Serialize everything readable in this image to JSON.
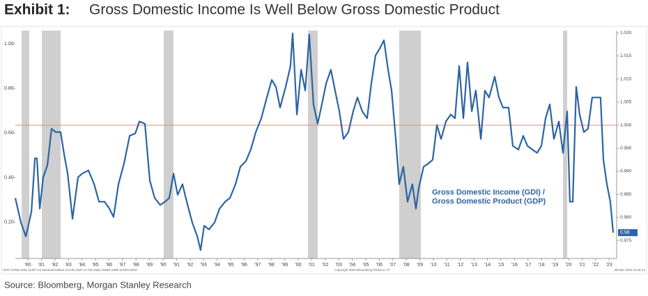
{
  "chart_data": {
    "type": "line",
    "title_prefix": "Exhibit 1:",
    "title": "Gross Domestic Income Is Well Below Gross Domestic Product",
    "source": "Source: Bloomberg, Morgan Stanley Research",
    "footnotes": [
      "GDP CUR$ Index (GDP US Nominal Dollars SAAR) GDP vs GDI Daily 31DEC1980-31DEC2023",
      "Copyright 2024 Bloomberg Finance L.P.",
      "08-Mar-2024 10:26:12"
    ],
    "label_lines": [
      "Gross Domestic Income (GDI) /",
      "Gross Domestic Product (GDP)"
    ],
    "last_value_label": "0.98",
    "reference_line": {
      "value": 1.0,
      "color": "#e8877f"
    },
    "shaded_ranges": [
      [
        1979.54,
        1980.1
      ],
      [
        1981.03,
        1982.42
      ],
      [
        1990.05,
        1990.77
      ],
      [
        2000.72,
        2001.44
      ],
      [
        2007.47,
        2009.07
      ],
      [
        2019.59,
        2019.9
      ]
    ],
    "shade_color": "#cfcfcf",
    "xlim": [
      1979.07,
      2023.56
    ],
    "xticks": [
      {
        "value": 1980,
        "label": "'80"
      },
      {
        "value": 1981,
        "label": "'81"
      },
      {
        "value": 1982,
        "label": "'82"
      },
      {
        "value": 1983,
        "label": "'83"
      },
      {
        "value": 1984,
        "label": "'84"
      },
      {
        "value": 1985,
        "label": "'85"
      },
      {
        "value": 1986,
        "label": "'86"
      },
      {
        "value": 1987,
        "label": "'87"
      },
      {
        "value": 1988,
        "label": "'88"
      },
      {
        "value": 1989,
        "label": "'89"
      },
      {
        "value": 1990,
        "label": "'90"
      },
      {
        "value": 1991,
        "label": "'91"
      },
      {
        "value": 1992,
        "label": "'92"
      },
      {
        "value": 1993,
        "label": "'93"
      },
      {
        "value": 1994,
        "label": "'94"
      },
      {
        "value": 1995,
        "label": "'95"
      },
      {
        "value": 1996,
        "label": "'96"
      },
      {
        "value": 1997,
        "label": "'97"
      },
      {
        "value": 1998,
        "label": "'98"
      },
      {
        "value": 1999,
        "label": "'99"
      },
      {
        "value": 2000,
        "label": "'00"
      },
      {
        "value": 2001,
        "label": "'01"
      },
      {
        "value": 2002,
        "label": "'02"
      },
      {
        "value": 2003,
        "label": "'03"
      },
      {
        "value": 2004,
        "label": "'04"
      },
      {
        "value": 2005,
        "label": "'05"
      },
      {
        "value": 2006,
        "label": "'06"
      },
      {
        "value": 2007,
        "label": "'07"
      },
      {
        "value": 2008,
        "label": "'08"
      },
      {
        "value": 2009,
        "label": "'09"
      },
      {
        "value": 2010,
        "label": "'10"
      },
      {
        "value": 2011,
        "label": "'11"
      },
      {
        "value": 2012,
        "label": "'12"
      },
      {
        "value": 2013,
        "label": "'13"
      },
      {
        "value": 2014,
        "label": "'14"
      },
      {
        "value": 2015,
        "label": "'15"
      },
      {
        "value": 2016,
        "label": "'16"
      },
      {
        "value": 2017,
        "label": "'17"
      },
      {
        "value": 2018,
        "label": "'18"
      },
      {
        "value": 2019,
        "label": "'19"
      },
      {
        "value": 2020,
        "label": "'20"
      },
      {
        "value": 2021,
        "label": "'21"
      },
      {
        "value": 2022,
        "label": "'22"
      },
      {
        "value": 2023,
        "label": "'23"
      }
    ],
    "ylim": [
      0.036,
      1.06
    ],
    "yticks": [
      {
        "value": 0.2,
        "label": "0.20"
      },
      {
        "value": 0.4,
        "label": "0.40"
      },
      {
        "value": 0.6,
        "label": "0.60"
      },
      {
        "value": 0.8,
        "label": "0.80"
      },
      {
        "value": 1.0,
        "label": "1.00"
      }
    ],
    "y2lim": [
      0.9711,
      1.0205
    ],
    "y2ticks": [
      0.975,
      {
        "value": 0.98,
        "label": "0.980"
      },
      0.985,
      {
        "value": 0.99,
        "label": "0.990"
      },
      0.995,
      {
        "value": 1.0,
        "label": "1.000"
      },
      1.005,
      {
        "value": 1.01,
        "label": "1.010"
      },
      1.015,
      {
        "value": 1.02,
        "label": "1.020"
      }
    ],
    "series": [
      {
        "color": "#2b63a3",
        "axis": "y2",
        "x": [
          1979.07,
          1979.48,
          1979.85,
          1980.26,
          1980.52,
          1980.67,
          1980.88,
          1981.13,
          1981.44,
          1981.75,
          1982.06,
          1982.42,
          1982.68,
          1982.94,
          1983.3,
          1983.71,
          1984.02,
          1984.48,
          1984.9,
          1985.26,
          1985.67,
          1986.03,
          1986.34,
          1986.7,
          1987.11,
          1987.53,
          1987.94,
          1988.25,
          1988.66,
          1989.02,
          1989.38,
          1989.79,
          1990.15,
          1990.46,
          1990.77,
          1991.08,
          1991.44,
          1991.75,
          1992.16,
          1992.53,
          1992.78,
          1993.04,
          1993.4,
          1993.81,
          1994.18,
          1994.59,
          1994.95,
          1995.36,
          1995.72,
          1996.13,
          1996.49,
          1996.86,
          1997.27,
          1997.68,
          1998.04,
          1998.35,
          1998.66,
          1999.07,
          1999.43,
          1999.59,
          1999.9,
          2000.21,
          2000.52,
          2000.82,
          2001.13,
          2001.44,
          2001.75,
          2002.06,
          2002.42,
          2002.73,
          2003.04,
          2003.35,
          2003.71,
          2004.07,
          2004.38,
          2004.74,
          2005.1,
          2005.41,
          2005.72,
          2006.03,
          2006.34,
          2006.65,
          2006.91,
          2007.22,
          2007.47,
          2007.78,
          2008.09,
          2008.45,
          2008.71,
          2008.92,
          2009.28,
          2009.64,
          2009.95,
          2010.26,
          2010.57,
          2010.93,
          2011.29,
          2011.6,
          2011.91,
          2012.22,
          2012.53,
          2012.84,
          2013.14,
          2013.51,
          2013.81,
          2014.12,
          2014.54,
          2014.85,
          2015.15,
          2015.57,
          2015.88,
          2016.29,
          2016.65,
          2016.96,
          2017.32,
          2017.68,
          2017.99,
          2018.3,
          2018.61,
          2018.92,
          2019.28,
          2019.59,
          2019.9,
          2020.1,
          2020.31,
          2020.57,
          2020.82,
          2021.13,
          2021.44,
          2021.75,
          2022.11,
          2022.37,
          2022.58,
          2022.84,
          2023.09,
          2023.3
        ],
        "values": [
          0.9842,
          0.9789,
          0.9759,
          0.9812,
          0.9928,
          0.9928,
          0.9819,
          0.9887,
          0.9913,
          0.9992,
          0.9985,
          0.9985,
          0.9937,
          0.9895,
          0.9797,
          0.9887,
          0.9895,
          0.9902,
          0.9872,
          0.9834,
          0.9834,
          0.9819,
          0.9801,
          0.9872,
          0.9917,
          0.9977,
          0.9982,
          1.0008,
          1.0003,
          0.988,
          0.9842,
          0.9827,
          0.9834,
          0.9842,
          0.9895,
          0.9849,
          0.9872,
          0.9834,
          0.9789,
          0.9759,
          0.9729,
          0.9782,
          0.9774,
          0.9789,
          0.9819,
          0.9834,
          0.9842,
          0.9872,
          0.991,
          0.9922,
          0.9947,
          0.9985,
          1.0015,
          1.006,
          1.0098,
          1.0083,
          1.0038,
          1.0083,
          1.0128,
          1.0199,
          1.0023,
          1.012,
          1.0075,
          1.0196,
          1.0045,
          1.0003,
          1.0045,
          1.009,
          1.012,
          1.0075,
          1.003,
          0.997,
          0.9985,
          1.003,
          1.006,
          1.003,
          1.0015,
          1.009,
          1.0151,
          1.0166,
          1.0184,
          1.012,
          1.0075,
          0.997,
          0.9872,
          0.991,
          0.9834,
          0.9872,
          0.9819,
          0.9864,
          0.991,
          0.9917,
          0.9925,
          1.0,
          0.997,
          1.0008,
          1.0023,
          1.0015,
          1.0128,
          1.0015,
          1.0136,
          1.003,
          1.0075,
          0.997,
          1.0075,
          1.006,
          1.0105,
          1.006,
          1.0038,
          1.0038,
          0.9955,
          0.9947,
          0.9977,
          0.9955,
          0.9947,
          0.994,
          0.9955,
          1.0015,
          1.0045,
          0.997,
          1.0008,
          0.994,
          1.003,
          0.9834,
          0.9834,
          1.0083,
          1.0023,
          0.9985,
          0.9992,
          1.006,
          1.006,
          1.006,
          0.9925,
          0.9872,
          0.9834,
          0.9767
        ]
      }
    ]
  }
}
